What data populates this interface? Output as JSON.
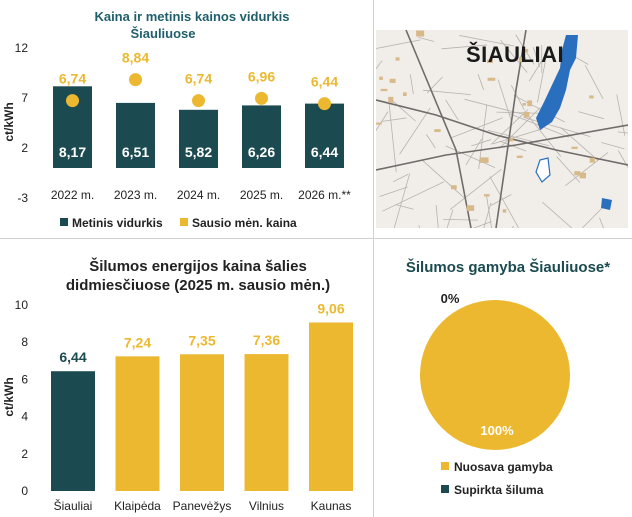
{
  "colors": {
    "dark_teal": "#1b4b50",
    "gold": "#ecb82f",
    "title_blue": "#1f5f6b",
    "water_blue": "#2a6fbe"
  },
  "chart_data": [
    {
      "type": "bar",
      "title": "Kaina ir metinis kainos vidurkis Šiauliuose",
      "title_lines": [
        "Kaina ir metinis kainos vidurkis",
        "Šiauliuose"
      ],
      "ylabel": "ct/kWh",
      "ylim": [
        -3,
        12
      ],
      "yticks": [
        12,
        7,
        2,
        -3
      ],
      "categories": [
        "2022 m.",
        "2023 m.",
        "2024 m.",
        "2025 m.",
        "2026 m.**"
      ],
      "series": [
        {
          "name": "Metinis vidurkis",
          "kind": "bar",
          "color": "#1b4b50",
          "values": [
            8.17,
            6.51,
            5.82,
            6.26,
            6.44
          ],
          "labels": [
            "8,17",
            "6,51",
            "5,82",
            "6,26",
            "6,44"
          ]
        },
        {
          "name": "Sausio mėn. kaina",
          "kind": "point",
          "color": "#ecb82f",
          "values": [
            6.74,
            8.84,
            6.74,
            6.96,
            6.44
          ],
          "labels": [
            "6,74",
            "8,84",
            "6,74",
            "6,96",
            "6,44"
          ]
        }
      ],
      "legend_position": "bottom"
    },
    {
      "type": "bar",
      "title": "Šilumos energijos kaina šalies didmiesčiuose (2025 m. sausio mėn.)",
      "title_lines": [
        "Šilumos energijos kaina šalies",
        "didmiesčiuose (2025 m. sausio mėn.)"
      ],
      "ylabel": "ct/kWh",
      "ylim": [
        0,
        10
      ],
      "yticks": [
        10,
        8,
        6,
        4,
        2,
        0
      ],
      "categories": [
        "Šiauliai",
        "Klaipėda",
        "Panevėžys",
        "Vilnius",
        "Kaunas"
      ],
      "values": [
        6.44,
        7.24,
        7.35,
        7.36,
        9.06
      ],
      "labels": [
        "6,44",
        "7,24",
        "7,35",
        "7,36",
        "9,06"
      ],
      "colors": [
        "#1b4b50",
        "#ecb82f",
        "#ecb82f",
        "#ecb82f",
        "#ecb82f"
      ]
    },
    {
      "type": "pie",
      "title": "Šilumos gamyba Šiauliuose*",
      "slices": [
        {
          "name": "Nuosava gamyba",
          "value": 100,
          "label": "100%",
          "color": "#ecb82f"
        },
        {
          "name": "Supirkta šiluma",
          "value": 0,
          "label": "0%",
          "color": "#1b4b50"
        }
      ],
      "legend_position": "bottom"
    }
  ],
  "map": {
    "title": "ŠIAULIAI"
  }
}
